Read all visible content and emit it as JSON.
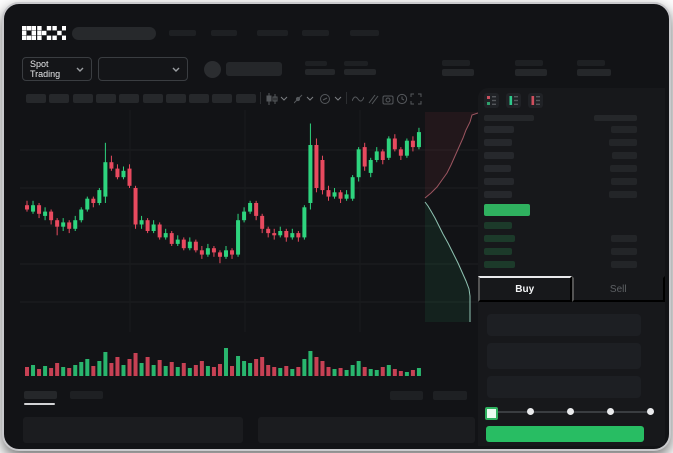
{
  "brand": {
    "name": "OKX"
  },
  "header": {
    "nav_placeholders": 5,
    "search_value": ""
  },
  "market_selector": {
    "label": "Spot Trading"
  },
  "toolbar": {
    "timeframe_chips": 10
  },
  "orderbook": {
    "view_toggles": [
      "book-combined",
      "book-bids",
      "book-asks"
    ],
    "ask_rows": 6,
    "bid_rows": 4,
    "last_price_color": "#2fb15f"
  },
  "trade_panel": {
    "tabs": [
      {
        "label": "Buy",
        "active": true
      },
      {
        "label": "Sell",
        "active": false
      }
    ],
    "fields": 3,
    "slider": {
      "stops": 5,
      "selected_index": 0,
      "values": [
        "0%",
        "25%",
        "50%",
        "75%",
        "100%"
      ]
    },
    "submit_color": "#28bd63"
  },
  "theme": {
    "up": "#2ed47e",
    "down": "#e84a5f",
    "accent_green": "#2fb15f"
  },
  "chart_data": {
    "type": "candlestick",
    "price_scale": [
      0,
      100
    ],
    "up_color": "#2ed47e",
    "down_color": "#e84a5f",
    "candles": [
      [
        59,
        61,
        56,
        57
      ],
      [
        56,
        61,
        55,
        59
      ],
      [
        59,
        60,
        53,
        55
      ],
      [
        54,
        58,
        52,
        56
      ],
      [
        56,
        57,
        50,
        52
      ],
      [
        52,
        53,
        45,
        49
      ],
      [
        49,
        53,
        47,
        51
      ],
      [
        51,
        52,
        46,
        48
      ],
      [
        48,
        54,
        47,
        52
      ],
      [
        52,
        58,
        51,
        57
      ],
      [
        57,
        63,
        56,
        62
      ],
      [
        62,
        63,
        58,
        60
      ],
      [
        60,
        67,
        59,
        66
      ],
      [
        63,
        88,
        60,
        79
      ],
      [
        79,
        82,
        75,
        76
      ],
      [
        76,
        78,
        71,
        72
      ],
      [
        72,
        77,
        71,
        75
      ],
      [
        76,
        78,
        67,
        68
      ],
      [
        67,
        68,
        48,
        50
      ],
      [
        50,
        54,
        48,
        52
      ],
      [
        52,
        53,
        46,
        47
      ],
      [
        47,
        52,
        46,
        50
      ],
      [
        50,
        51,
        43,
        44
      ],
      [
        44,
        48,
        43,
        46
      ],
      [
        46,
        47,
        40,
        41
      ],
      [
        41,
        45,
        40,
        43
      ],
      [
        43,
        44,
        38,
        39
      ],
      [
        39,
        44,
        38,
        42
      ],
      [
        42,
        43,
        37,
        38
      ],
      [
        38,
        40,
        34,
        36
      ],
      [
        36,
        41,
        35,
        39
      ],
      [
        39,
        40,
        35,
        37
      ],
      [
        37,
        38,
        32,
        35
      ],
      [
        35,
        40,
        34,
        38
      ],
      [
        38,
        39,
        34,
        36
      ],
      [
        36,
        55,
        35,
        52
      ],
      [
        52,
        58,
        51,
        56
      ],
      [
        56,
        61,
        55,
        60
      ],
      [
        60,
        61,
        52,
        54
      ],
      [
        54,
        55,
        46,
        48
      ],
      [
        48,
        49,
        44,
        46
      ],
      [
        46,
        48,
        43,
        45
      ],
      [
        45,
        49,
        44,
        47
      ],
      [
        47,
        48,
        42,
        44
      ],
      [
        44,
        48,
        43,
        46
      ],
      [
        46,
        47,
        42,
        44
      ],
      [
        44,
        59,
        43,
        58
      ],
      [
        60,
        97,
        57,
        87
      ],
      [
        87,
        90,
        65,
        67
      ],
      [
        80,
        82,
        64,
        66
      ],
      [
        66,
        68,
        61,
        63
      ],
      [
        63,
        67,
        62,
        65
      ],
      [
        65,
        66,
        60,
        62
      ],
      [
        62,
        66,
        61,
        64
      ],
      [
        62,
        73,
        61,
        72
      ],
      [
        72,
        86,
        70,
        85
      ],
      [
        86,
        88,
        75,
        77
      ],
      [
        74,
        81,
        72,
        80
      ],
      [
        80,
        86,
        79,
        84
      ],
      [
        84,
        85,
        78,
        80
      ],
      [
        81,
        91,
        80,
        90
      ],
      [
        90,
        92,
        84,
        85
      ],
      [
        85,
        86,
        80,
        82
      ],
      [
        82,
        90,
        81,
        89
      ],
      [
        89,
        91,
        84,
        86
      ],
      [
        86,
        95,
        85,
        93
      ]
    ],
    "volume": [
      9,
      11,
      7,
      10,
      8,
      13,
      9,
      8,
      11,
      14,
      17,
      10,
      15,
      24,
      13,
      19,
      11,
      17,
      23,
      13,
      19,
      11,
      16,
      10,
      14,
      9,
      13,
      8,
      11,
      15,
      10,
      9,
      12,
      28,
      10,
      20,
      15,
      13,
      17,
      19,
      11,
      9,
      8,
      10,
      7,
      9,
      17,
      25,
      19,
      15,
      9,
      7,
      8,
      6,
      11,
      15,
      9,
      7,
      6,
      9,
      11,
      7,
      5,
      4,
      6,
      8
    ],
    "depth": {
      "asks_line": "458,3 452,5 450,12 446,20 443,28 439,37 435,46 431,55 427,63 422,70 417,77 411,83 405,88",
      "asks_fill_prefix": "405,2 458,2",
      "bids_line": "405,92 408,96 411,101 415,108 419,116 423,124 428,133 433,143 438,153 442,162 446,171 449,179 450,186 450,212",
      "bids_fill_suffix": "405,212",
      "ask_area": "rgba(232,74,95,0.08)",
      "bid_area": "rgba(46,212,126,0.08)",
      "ask_stroke": "#9c5560",
      "bid_stroke": "#8fc3b2"
    }
  }
}
